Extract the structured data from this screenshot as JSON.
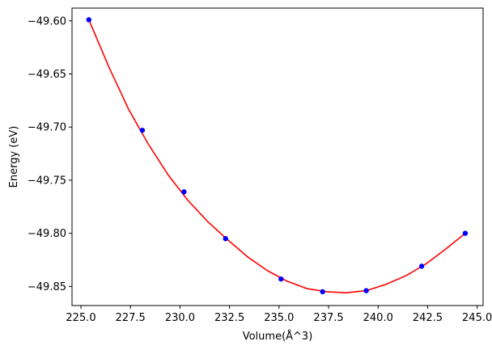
{
  "chart_data": {
    "type": "scatter",
    "title": "",
    "xlabel": "Volume(Å^3)",
    "ylabel": "Energy (eV)",
    "xlim": [
      224.55,
      245.3
    ],
    "ylim": [
      -49.868,
      -49.588
    ],
    "xticks": [
      225.0,
      227.5,
      230.0,
      232.5,
      235.0,
      237.5,
      240.0,
      242.5,
      245.0
    ],
    "xtick_labels": [
      "225.0",
      "227.5",
      "230.0",
      "232.5",
      "235.0",
      "237.5",
      "240.0",
      "242.5",
      "245.0"
    ],
    "yticks": [
      -49.85,
      -49.8,
      -49.75,
      -49.7,
      -49.65,
      -49.6
    ],
    "ytick_labels": [
      "−49.85",
      "−49.80",
      "−49.75",
      "−49.70",
      "−49.65",
      "−49.60"
    ],
    "grid": false,
    "series": [
      {
        "kind": "points",
        "color": "#0000ff",
        "x": [
          225.4,
          228.1,
          230.2,
          232.3,
          235.1,
          237.2,
          239.4,
          242.2,
          244.4
        ],
        "y": [
          -49.599,
          -49.703,
          -49.761,
          -49.805,
          -49.843,
          -49.855,
          -49.854,
          -49.831,
          -49.8
        ]
      },
      {
        "kind": "fit-curve",
        "color": "#ff0000",
        "x": [
          225.4,
          226.4,
          227.4,
          228.4,
          229.4,
          230.4,
          231.4,
          232.4,
          233.4,
          234.4,
          235.4,
          236.4,
          237.4,
          238.4,
          239.4,
          240.4,
          241.4,
          242.4,
          243.4,
          244.4
        ],
        "y": [
          -49.599,
          -49.643,
          -49.683,
          -49.716,
          -49.745,
          -49.769,
          -49.789,
          -49.806,
          -49.822,
          -49.835,
          -49.845,
          -49.852,
          -49.855,
          -49.856,
          -49.854,
          -49.848,
          -49.84,
          -49.829,
          -49.815,
          -49.8
        ]
      }
    ]
  }
}
